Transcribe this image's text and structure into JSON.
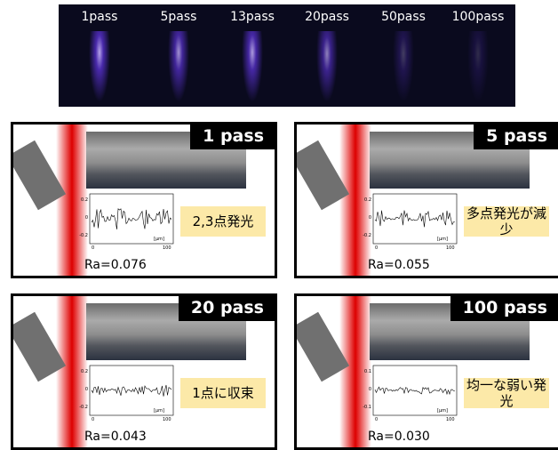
{
  "strip": {
    "labels": [
      "1pass",
      "5pass",
      "13pass",
      "20pass",
      "50pass",
      "100pass"
    ]
  },
  "panels": [
    {
      "title": "1 pass",
      "note": "2,3点発光",
      "ra": "Ra=0.076",
      "yticks": [
        "0.2",
        "0",
        "-0.2"
      ],
      "xticks": [
        "0",
        "100"
      ],
      "unit": "[μm]"
    },
    {
      "title": "5 pass",
      "note": "多点発光が減少",
      "ra": "Ra=0.055",
      "yticks": [
        "0.2",
        "0",
        "-0.2"
      ],
      "xticks": [
        "0",
        "100"
      ],
      "unit": "[μm]"
    },
    {
      "title": "20 pass",
      "note": "1点に収束",
      "ra": "Ra=0.043",
      "yticks": [
        "0.2",
        "0",
        "-0.2"
      ],
      "xticks": [
        "0",
        "100"
      ],
      "unit": "[μm]"
    },
    {
      "title": "100 pass",
      "note": "均一な弱い発光",
      "ra": "Ra=0.030",
      "yticks": [
        "0.1",
        "0",
        "-0.1"
      ],
      "xticks": [
        "0",
        "100"
      ],
      "unit": "[μm]"
    }
  ]
}
